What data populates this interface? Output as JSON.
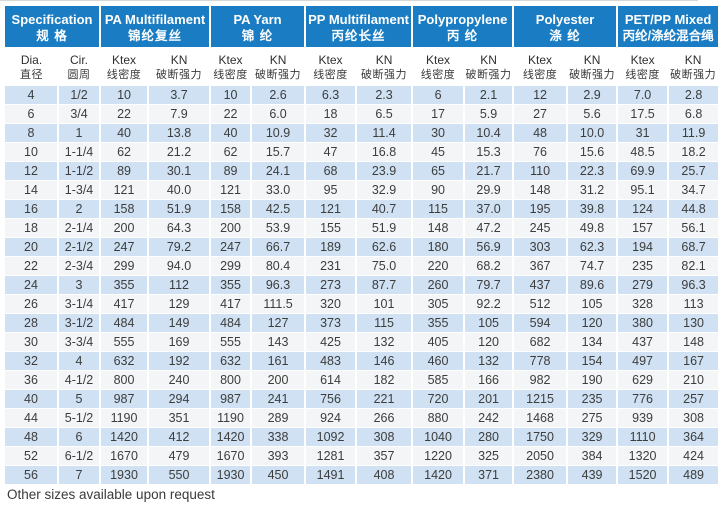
{
  "page": {
    "footer_note": "Other sizes available upon request"
  },
  "colors": {
    "header_blue": "#1a7dc3",
    "header_text": "#ffffff",
    "row_blue": "#cfe1f2",
    "row_alt": "#f4f5f6",
    "separator_white": "#ffffff",
    "body_text": "#3d3d3d"
  },
  "table": {
    "groups": [
      {
        "en": "Specification",
        "zh": "规 格"
      },
      {
        "en": "PA Multifilament",
        "zh": "锦纶复丝"
      },
      {
        "en": "PA Yarn",
        "zh": "锦 纶"
      },
      {
        "en": "PP Multifilament",
        "zh": "丙纶长丝"
      },
      {
        "en": "Polypropylene",
        "zh": "丙 纶"
      },
      {
        "en": "Polyester",
        "zh": "涤 纶"
      },
      {
        "en": "PET/PP Mixed",
        "zh": "丙纶/涤纶混合绳"
      }
    ],
    "subheader": [
      {
        "en": "Dia.",
        "zh": "直径"
      },
      {
        "en": "Cir.",
        "zh": "圆周"
      },
      {
        "en": "Ktex",
        "zh": "线密度"
      },
      {
        "en": "KN",
        "zh": "破断强力"
      },
      {
        "en": "Ktex",
        "zh": "线密度"
      },
      {
        "en": "KN",
        "zh": "破断强力"
      },
      {
        "en": "Ktex",
        "zh": "线密度"
      },
      {
        "en": "KN",
        "zh": "破断强力"
      },
      {
        "en": "Ktex",
        "zh": "线密度"
      },
      {
        "en": "KN",
        "zh": "破断强力"
      },
      {
        "en": "Ktex",
        "zh": "线密度"
      },
      {
        "en": "KN",
        "zh": "破断强力"
      },
      {
        "en": "Ktex",
        "zh": "线密度"
      },
      {
        "en": "KN",
        "zh": "破断强力"
      }
    ],
    "rows": [
      [
        "4",
        "1/2",
        "10",
        "3.7",
        "10",
        "2.6",
        "6.3",
        "2.3",
        "6",
        "2.1",
        "12",
        "2.9",
        "7.0",
        "2.8"
      ],
      [
        "6",
        "3/4",
        "22",
        "7.9",
        "22",
        "6.0",
        "18",
        "6.5",
        "17",
        "5.9",
        "27",
        "5.6",
        "17.5",
        "6.8"
      ],
      [
        "8",
        "1",
        "40",
        "13.8",
        "40",
        "10.9",
        "32",
        "11.4",
        "30",
        "10.4",
        "48",
        "10.0",
        "31",
        "11.9"
      ],
      [
        "10",
        "1-1/4",
        "62",
        "21.2",
        "62",
        "15.7",
        "47",
        "16.8",
        "45",
        "15.3",
        "76",
        "15.6",
        "48.5",
        "18.2"
      ],
      [
        "12",
        "1-1/2",
        "89",
        "30.1",
        "89",
        "24.1",
        "68",
        "23.9",
        "65",
        "21.7",
        "110",
        "22.3",
        "69.9",
        "25.7"
      ],
      [
        "14",
        "1-3/4",
        "121",
        "40.0",
        "121",
        "33.0",
        "95",
        "32.9",
        "90",
        "29.9",
        "148",
        "31.2",
        "95.1",
        "34.7"
      ],
      [
        "16",
        "2",
        "158",
        "51.9",
        "158",
        "42.5",
        "121",
        "40.7",
        "115",
        "37.0",
        "195",
        "39.8",
        "124",
        "44.8"
      ],
      [
        "18",
        "2-1/4",
        "200",
        "64.3",
        "200",
        "53.9",
        "155",
        "51.9",
        "148",
        "47.2",
        "245",
        "49.8",
        "157",
        "56.1"
      ],
      [
        "20",
        "2-1/2",
        "247",
        "79.2",
        "247",
        "66.7",
        "189",
        "62.6",
        "180",
        "56.9",
        "303",
        "62.3",
        "194",
        "68.7"
      ],
      [
        "22",
        "2-3/4",
        "299",
        "94.0",
        "299",
        "80.4",
        "231",
        "75.0",
        "220",
        "68.2",
        "367",
        "74.7",
        "235",
        "82.1"
      ],
      [
        "24",
        "3",
        "355",
        "112",
        "355",
        "96.3",
        "273",
        "87.7",
        "260",
        "79.7",
        "437",
        "89.6",
        "279",
        "96.3"
      ],
      [
        "26",
        "3-1/4",
        "417",
        "129",
        "417",
        "111.5",
        "320",
        "101",
        "305",
        "92.2",
        "512",
        "105",
        "328",
        "113"
      ],
      [
        "28",
        "3-1/2",
        "484",
        "149",
        "484",
        "127",
        "373",
        "115",
        "355",
        "105",
        "594",
        "120",
        "380",
        "130"
      ],
      [
        "30",
        "3-3/4",
        "555",
        "169",
        "555",
        "143",
        "425",
        "132",
        "405",
        "120",
        "682",
        "134",
        "437",
        "148"
      ],
      [
        "32",
        "4",
        "632",
        "192",
        "632",
        "161",
        "483",
        "146",
        "460",
        "132",
        "778",
        "154",
        "497",
        "167"
      ],
      [
        "36",
        "4-1/2",
        "800",
        "240",
        "800",
        "200",
        "614",
        "182",
        "585",
        "166",
        "982",
        "190",
        "629",
        "210"
      ],
      [
        "40",
        "5",
        "987",
        "294",
        "987",
        "241",
        "756",
        "221",
        "720",
        "201",
        "1215",
        "235",
        "776",
        "257"
      ],
      [
        "44",
        "5-1/2",
        "1190",
        "351",
        "1190",
        "289",
        "924",
        "266",
        "880",
        "242",
        "1468",
        "275",
        "939",
        "308"
      ],
      [
        "48",
        "6",
        "1420",
        "412",
        "1420",
        "338",
        "1092",
        "308",
        "1040",
        "280",
        "1750",
        "329",
        "1110",
        "364"
      ],
      [
        "52",
        "6-1/2",
        "1670",
        "479",
        "1670",
        "393",
        "1281",
        "357",
        "1220",
        "325",
        "2050",
        "384",
        "1320",
        "424"
      ],
      [
        "56",
        "7",
        "1930",
        "550",
        "1930",
        "450",
        "1491",
        "408",
        "1420",
        "371",
        "2380",
        "439",
        "1520",
        "489"
      ]
    ]
  }
}
